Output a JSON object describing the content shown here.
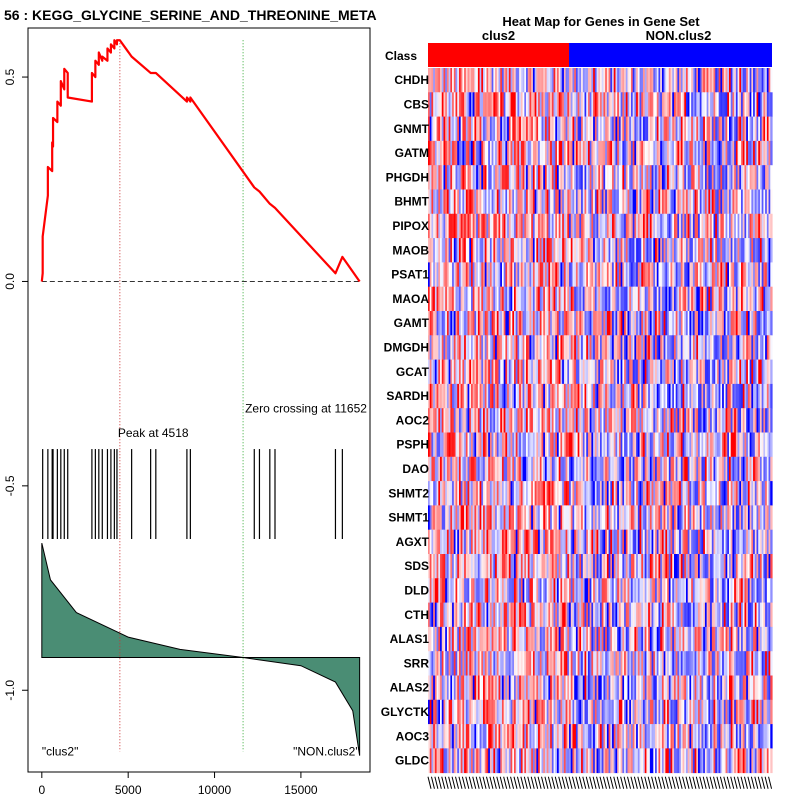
{
  "chart_data": [
    {
      "type": "line",
      "title": "56 : KEGG_GLYCINE_SERINE_AND_THREONINE_META",
      "xlabel": "",
      "ylabel": "",
      "xlim": [
        -800,
        19000
      ],
      "ylim": [
        -1.2,
        0.62
      ],
      "x_ticks": [
        0,
        5000,
        10000,
        15000
      ],
      "x_tick_labels": [
        "0",
        "5000",
        "10000",
        "15000"
      ],
      "y_ticks": [
        0.5,
        0.0,
        -0.5,
        -1.0
      ],
      "y_tick_labels": [
        "0.5",
        "0.0",
        "-0.5",
        "-1.0"
      ],
      "enrichment_color": "#ff0000",
      "fill_color": "#4a8d74",
      "peak_line_color": "#cc3333",
      "zero_line_color": "#33aa33",
      "series": [
        {
          "name": "Running enrichment score",
          "x": [
            0,
            50,
            50,
            350,
            350,
            600,
            600,
            650,
            650,
            900,
            900,
            1100,
            1100,
            1300,
            1300,
            1500,
            1500,
            2900,
            2900,
            3100,
            3100,
            3300,
            3300,
            3500,
            3500,
            3800,
            3800,
            4000,
            4000,
            4200,
            4200,
            4350,
            4350,
            4518,
            5200,
            5200,
            6300,
            6300,
            6600,
            6600,
            8400,
            8400,
            8600,
            8600,
            12300,
            12300,
            12600,
            12600,
            13200,
            13200,
            13500,
            13500,
            17000,
            17000,
            17400,
            17400,
            18400
          ],
          "y": [
            0,
            0.02,
            0.11,
            0.21,
            0.28,
            0.27,
            0.34,
            0.33,
            0.4,
            0.39,
            0.44,
            0.43,
            0.49,
            0.47,
            0.52,
            0.51,
            0.45,
            0.44,
            0.51,
            0.5,
            0.54,
            0.53,
            0.56,
            0.54,
            0.55,
            0.54,
            0.57,
            0.56,
            0.58,
            0.57,
            0.59,
            0.58,
            0.59,
            0.59,
            0.55,
            0.55,
            0.51,
            0.51,
            0.51,
            0.51,
            0.44,
            0.45,
            0.44,
            0.45,
            0.23,
            0.23,
            0.22,
            0.22,
            0.19,
            0.19,
            0.18,
            0.18,
            0.02,
            0.02,
            0.06,
            0.06,
            0
          ]
        }
      ],
      "gene_hits": [
        50,
        350,
        600,
        650,
        900,
        1100,
        1300,
        1500,
        2900,
        3100,
        3300,
        3500,
        3800,
        4000,
        4200,
        4350,
        5200,
        6300,
        6600,
        8400,
        8600,
        12300,
        12600,
        13200,
        13500,
        17000,
        17400
      ],
      "ranked_metric": {
        "baseline": -0.92,
        "x": [
          0,
          500,
          2000,
          5000,
          8000,
          11652,
          15000,
          17000,
          18000,
          18400
        ],
        "y": [
          -0.64,
          -0.73,
          -0.81,
          -0.87,
          -0.9,
          -0.92,
          -0.94,
          -0.98,
          -1.05,
          -1.16
        ]
      },
      "peak": {
        "x": 4518,
        "label": "Peak at 4518"
      },
      "zero_crossing": {
        "x": 11652,
        "label": "Zero crossing at 11652"
      },
      "annotations": {
        "left_class": "\"clus2\"",
        "right_class": "\"NON.clus2\""
      }
    },
    {
      "type": "heatmap",
      "title": "Heat Map for Genes in Gene Set",
      "class_row_label": "Class",
      "classes": [
        {
          "name": "clus2",
          "color": "#ff0000",
          "fraction": 0.41
        },
        {
          "name": "NON.clus2",
          "color": "#0000ff",
          "fraction": 0.59
        }
      ],
      "genes": [
        "CHDH",
        "CBS",
        "GNMT",
        "GATM",
        "PHGDH",
        "BHMT",
        "PIPOX",
        "MAOB",
        "PSAT1",
        "MAOA",
        "GAMT",
        "DMGDH",
        "GCAT",
        "SARDH",
        "AOC2",
        "PSPH",
        "DAO",
        "SHMT2",
        "SHMT1",
        "AGXT",
        "SDS",
        "DLD",
        "CTH",
        "ALAS1",
        "SRR",
        "ALAS2",
        "GLYCTK",
        "AOC3",
        "GLDC"
      ],
      "n_samples": 200,
      "low_color": "#0000ff",
      "mid_color": "#ffffff",
      "high_color": "#ff0000"
    }
  ]
}
